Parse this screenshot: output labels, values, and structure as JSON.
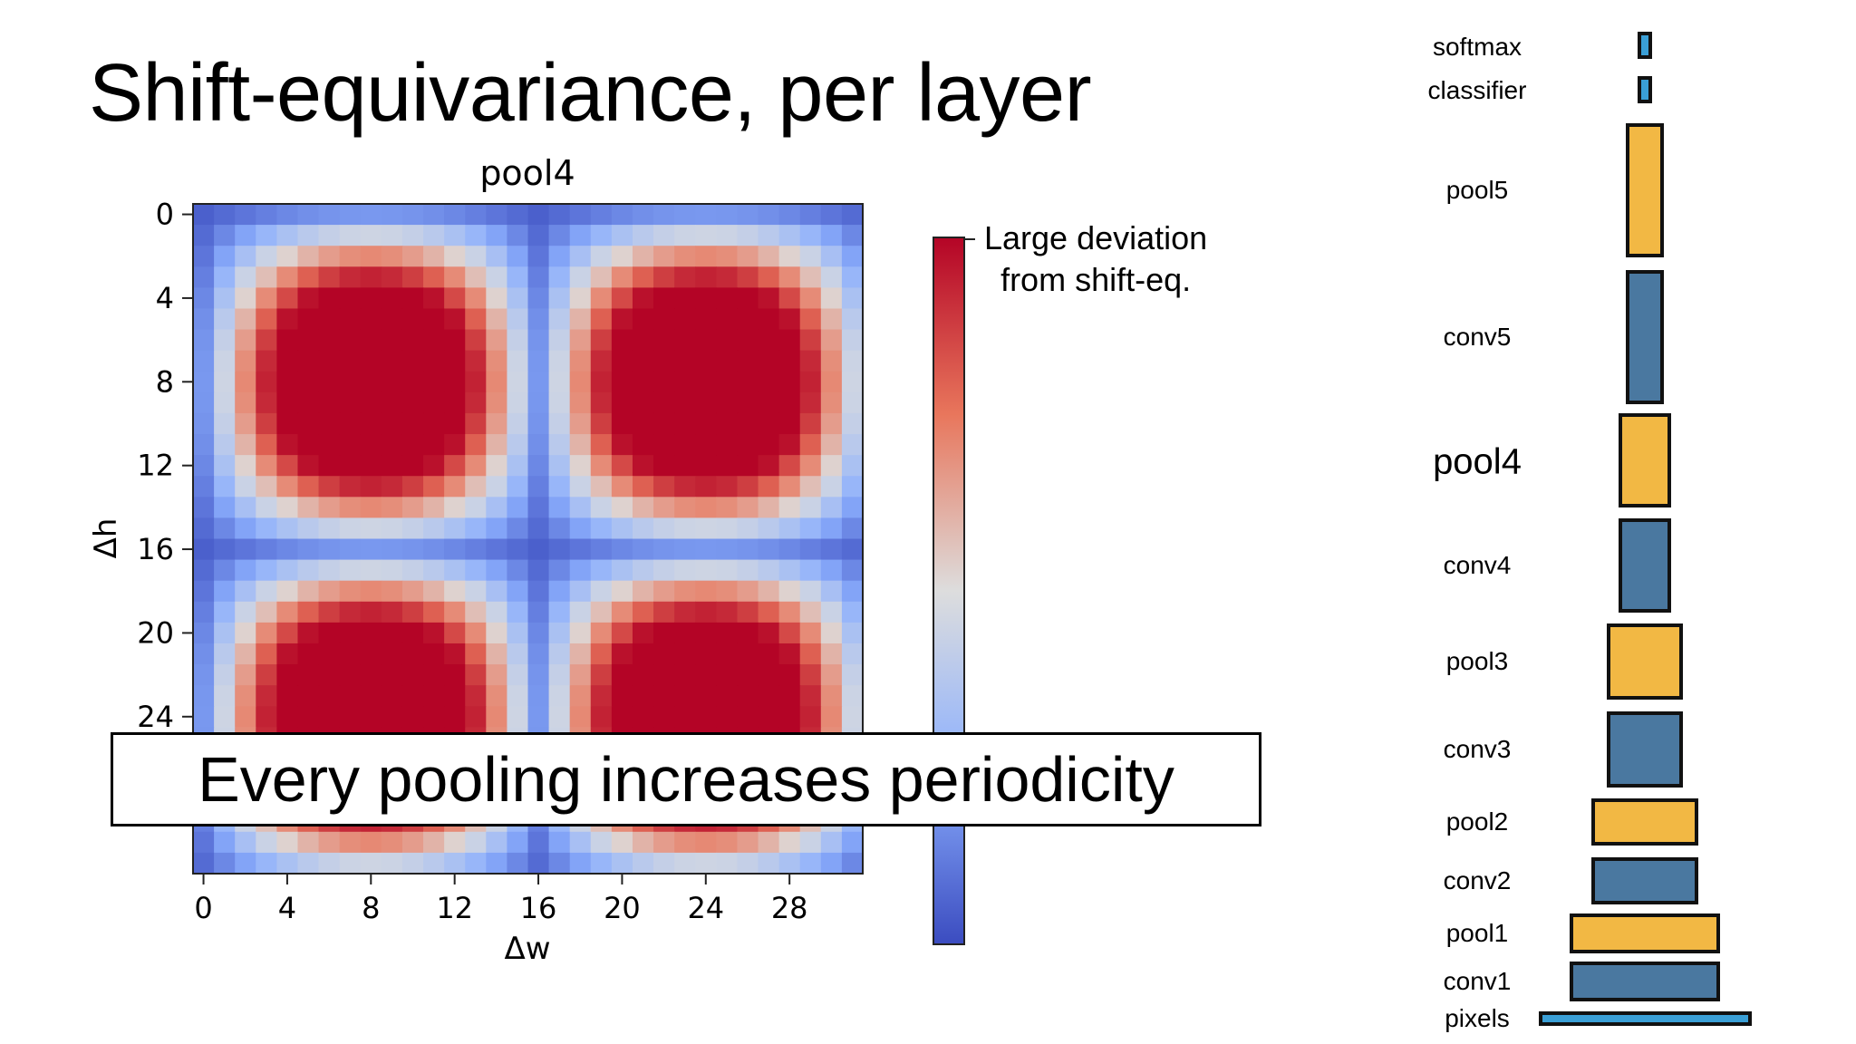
{
  "slide": {
    "title": "Shift-equivariance, per layer",
    "callout": "Every pooling increases periodicity"
  },
  "colorbar": {
    "annotation_line1": "Large deviation",
    "annotation_line2": "from shift-eq.",
    "high_color": "#b40426",
    "mid_color": "#dddddd",
    "low_color": "#3b4cc0"
  },
  "chart_data": {
    "type": "heatmap",
    "title": "pool4",
    "xlabel": "Δw",
    "ylabel": "Δh",
    "x_ticks": [
      0,
      4,
      8,
      12,
      16,
      20,
      24,
      28
    ],
    "y_ticks": [
      0,
      4,
      8,
      12,
      16,
      20,
      24
    ],
    "grid_size": 32,
    "period": 16,
    "colormap": "coolwarm",
    "value_range": [
      0,
      1
    ]
  },
  "layers": [
    {
      "name": "softmax",
      "type": "output",
      "relative_size": 1
    },
    {
      "name": "classifier",
      "type": "output",
      "relative_size": 1
    },
    {
      "name": "pool5",
      "type": "pool",
      "relative_size": 7
    },
    {
      "name": "conv5",
      "type": "conv",
      "relative_size": 7
    },
    {
      "name": "pool4",
      "type": "pool",
      "relative_size": 14,
      "highlight": true
    },
    {
      "name": "conv4",
      "type": "conv",
      "relative_size": 14
    },
    {
      "name": "pool3",
      "type": "pool",
      "relative_size": 28
    },
    {
      "name": "conv3",
      "type": "conv",
      "relative_size": 28
    },
    {
      "name": "pool2",
      "type": "pool",
      "relative_size": 56
    },
    {
      "name": "conv2",
      "type": "conv",
      "relative_size": 56
    },
    {
      "name": "pool1",
      "type": "pool",
      "relative_size": 112
    },
    {
      "name": "conv1",
      "type": "conv",
      "relative_size": 112
    },
    {
      "name": "pixels",
      "type": "input",
      "relative_size": 224
    }
  ],
  "layer_colors": {
    "conv": "#4a78a0",
    "pool": "#f2b844",
    "output": "#3a9fd6",
    "input": "#3a9fd6"
  }
}
